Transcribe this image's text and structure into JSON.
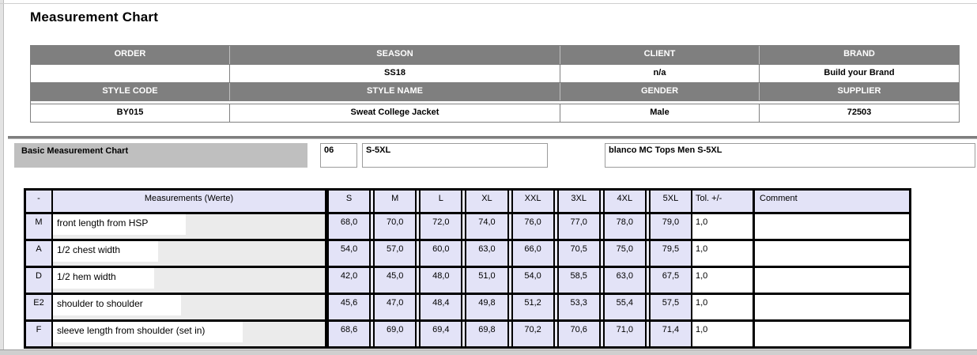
{
  "page": {
    "title": "Measurement Chart"
  },
  "info_table": {
    "row_pairs": [
      {
        "headers": [
          "ORDER",
          "SEASON",
          "CLIENT",
          "BRAND"
        ],
        "values": [
          "",
          "SS18",
          "n/a",
          "Build your Brand"
        ]
      },
      {
        "headers": [
          "STYLE CODE",
          "STYLE NAME",
          "GENDER",
          "SUPPLIER"
        ],
        "values": [
          "BY015",
          "Sweat College Jacket",
          "Male",
          "72503"
        ]
      }
    ]
  },
  "chart_bar": {
    "label": "Basic Measurement Chart",
    "chart_code": "06",
    "size_range": "S-5XL",
    "description": "blanco MC Tops Men S-5XL"
  },
  "measurement_table": {
    "columns": [
      "-",
      "Measurements (Werte)",
      "S",
      "M",
      "L",
      "XL",
      "XXL",
      "3XL",
      "4XL",
      "5XL",
      "Tol. +/-",
      "Comment"
    ],
    "rows": [
      {
        "code": "M",
        "name": "front length from HSP",
        "values": [
          "68,0",
          "70,0",
          "72,0",
          "74,0",
          "76,0",
          "77,0",
          "78,0",
          "79,0"
        ],
        "tol": "1,0",
        "comment": ""
      },
      {
        "code": "A",
        "name": "1/2 chest width",
        "values": [
          "54,0",
          "57,0",
          "60,0",
          "63,0",
          "66,0",
          "70,5",
          "75,0",
          "79,5"
        ],
        "tol": "1,0",
        "comment": ""
      },
      {
        "code": "D",
        "name": "1/2 hem width",
        "values": [
          "42,0",
          "45,0",
          "48,0",
          "51,0",
          "54,0",
          "58,5",
          "63,0",
          "67,5"
        ],
        "tol": "1,0",
        "comment": ""
      },
      {
        "code": "E2",
        "name": "shoulder to shoulder",
        "values": [
          "45,6",
          "47,0",
          "48,4",
          "49,8",
          "51,2",
          "53,3",
          "55,4",
          "57,5"
        ],
        "tol": "1,0",
        "comment": ""
      },
      {
        "code": "F",
        "name": "sleeve length from shoulder (set in)",
        "values": [
          "68,6",
          "69,0",
          "69,4",
          "69,8",
          "70,2",
          "70,6",
          "71,0",
          "71,4"
        ],
        "tol": "1,0",
        "comment": ""
      }
    ]
  },
  "colors": {
    "header_gray": "#7f7f7f",
    "panel_gray": "#bfbfbf",
    "cell_lavender": "#e3e3f7",
    "cell_gray": "#ebebeb",
    "border_black": "#000000",
    "rule_gray": "#7e7e7e"
  }
}
